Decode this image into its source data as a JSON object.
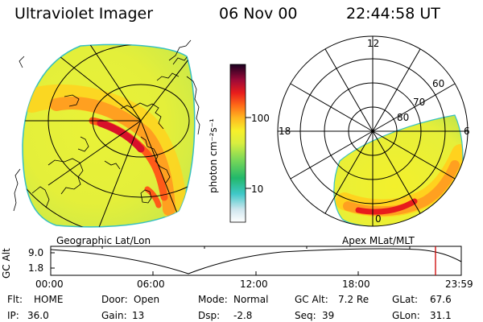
{
  "header": {
    "title": "Ultraviolet Imager",
    "date": "06 Nov 00",
    "time": "22:44:58 UT"
  },
  "colorbar": {
    "unit_label": "photon cm⁻²s⁻¹",
    "ticks": [
      "100",
      "10"
    ]
  },
  "geographic_panel": {
    "label": "Geographic Lat/Lon"
  },
  "polar_panel": {
    "label": "Apex MLat/MLT",
    "mlt_labels": [
      "12",
      "18",
      "6",
      "0"
    ],
    "lat_labels": [
      "60",
      "70",
      "80"
    ]
  },
  "altitude_plot": {
    "ylabel": "GC Alt",
    "y_ticks": [
      "9.0",
      "1.8"
    ],
    "x_ticks": [
      "00:00",
      "06:00",
      "12:00",
      "18:00",
      "23:59"
    ],
    "current_marker_color": "#cc0000"
  },
  "status": {
    "row1": [
      {
        "key": "Flt:",
        "value": "HOME"
      },
      {
        "key": "Door:",
        "value": "Open"
      },
      {
        "key": "Mode:",
        "value": "Normal"
      },
      {
        "key": "GC Alt:",
        "value": "7.2 Re"
      },
      {
        "key": "GLat:",
        "value": "67.6"
      }
    ],
    "row2": [
      {
        "key": "IP:",
        "value": "36.0"
      },
      {
        "key": "Gain:",
        "value": "13"
      },
      {
        "key": "Dsp:",
        "value": "-2.8"
      },
      {
        "key": "Seq:",
        "value": "39"
      },
      {
        "key": "GLon:",
        "value": "31.1"
      }
    ]
  }
}
